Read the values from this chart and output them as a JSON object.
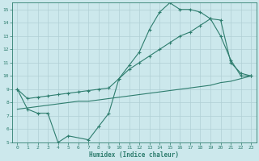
{
  "xlabel": "Humidex (Indice chaleur)",
  "bg_color": "#cce8ec",
  "grid_color": "#b0cfd4",
  "line_color": "#2e7d6e",
  "xlim": [
    -0.5,
    23.5
  ],
  "ylim": [
    5,
    15.5
  ],
  "yticks": [
    5,
    6,
    7,
    8,
    9,
    10,
    11,
    12,
    13,
    14,
    15
  ],
  "xticks": [
    0,
    1,
    2,
    3,
    4,
    5,
    6,
    7,
    8,
    9,
    10,
    11,
    12,
    13,
    14,
    15,
    16,
    17,
    18,
    19,
    20,
    21,
    22,
    23
  ],
  "curve1_x": [
    0,
    1,
    2,
    3,
    4,
    5,
    7,
    8,
    9,
    10,
    11,
    12,
    13,
    14,
    15,
    16,
    17,
    18,
    19,
    20,
    21,
    22,
    23
  ],
  "curve1_y": [
    9.0,
    7.5,
    7.2,
    7.2,
    5.0,
    5.5,
    5.2,
    6.2,
    7.2,
    9.8,
    10.8,
    11.8,
    13.5,
    14.8,
    15.5,
    15.0,
    15.0,
    14.8,
    14.3,
    13.0,
    11.2,
    10.0,
    10.0
  ],
  "curve2_x": [
    0,
    1,
    2,
    3,
    4,
    5,
    6,
    7,
    8,
    9,
    10,
    11,
    12,
    13,
    14,
    15,
    16,
    17,
    18,
    19,
    20,
    21,
    22,
    23
  ],
  "curve2_y": [
    9.0,
    8.3,
    8.4,
    8.5,
    8.6,
    8.7,
    8.8,
    8.9,
    9.0,
    9.1,
    9.8,
    10.5,
    11.0,
    11.5,
    12.0,
    12.5,
    13.0,
    13.3,
    13.8,
    14.3,
    14.2,
    11.0,
    10.2,
    10.0
  ],
  "curve3_x": [
    0,
    1,
    2,
    3,
    4,
    5,
    6,
    7,
    8,
    9,
    10,
    11,
    12,
    13,
    14,
    15,
    16,
    17,
    18,
    19,
    20,
    21,
    22,
    23
  ],
  "curve3_y": [
    7.5,
    7.6,
    7.7,
    7.8,
    7.9,
    8.0,
    8.1,
    8.1,
    8.2,
    8.3,
    8.4,
    8.5,
    8.6,
    8.7,
    8.8,
    8.9,
    9.0,
    9.1,
    9.2,
    9.3,
    9.5,
    9.6,
    9.8,
    10.0
  ]
}
